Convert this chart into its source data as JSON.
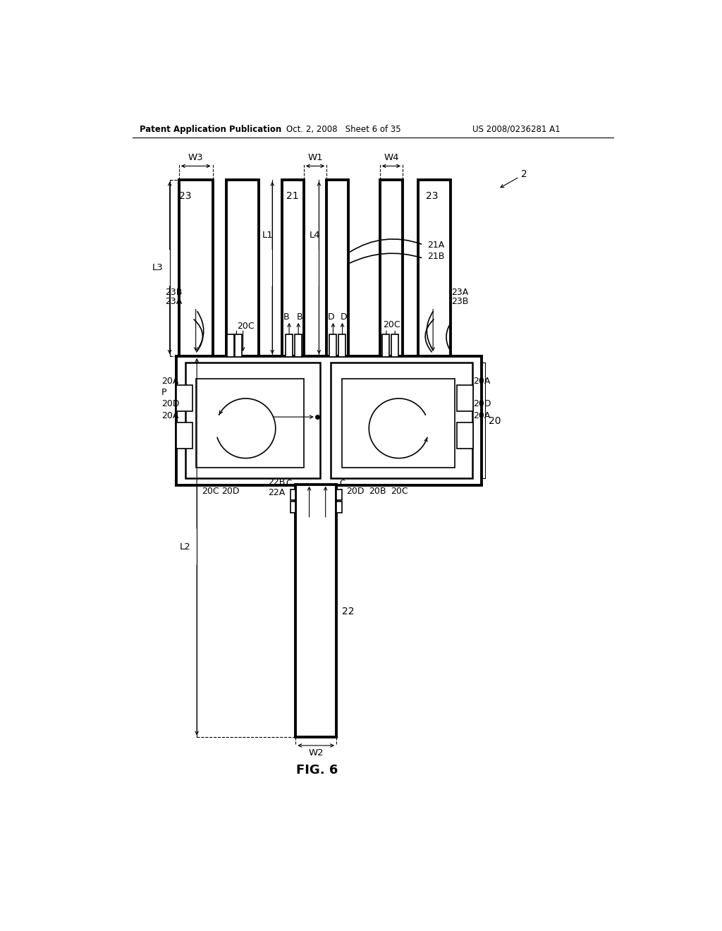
{
  "header_left": "Patent Application Publication",
  "header_center": "Oct. 2, 2008   Sheet 6 of 35",
  "header_right": "US 2008/0236281 A1",
  "bg_color": "#ffffff",
  "fig_label": "FIG. 6"
}
